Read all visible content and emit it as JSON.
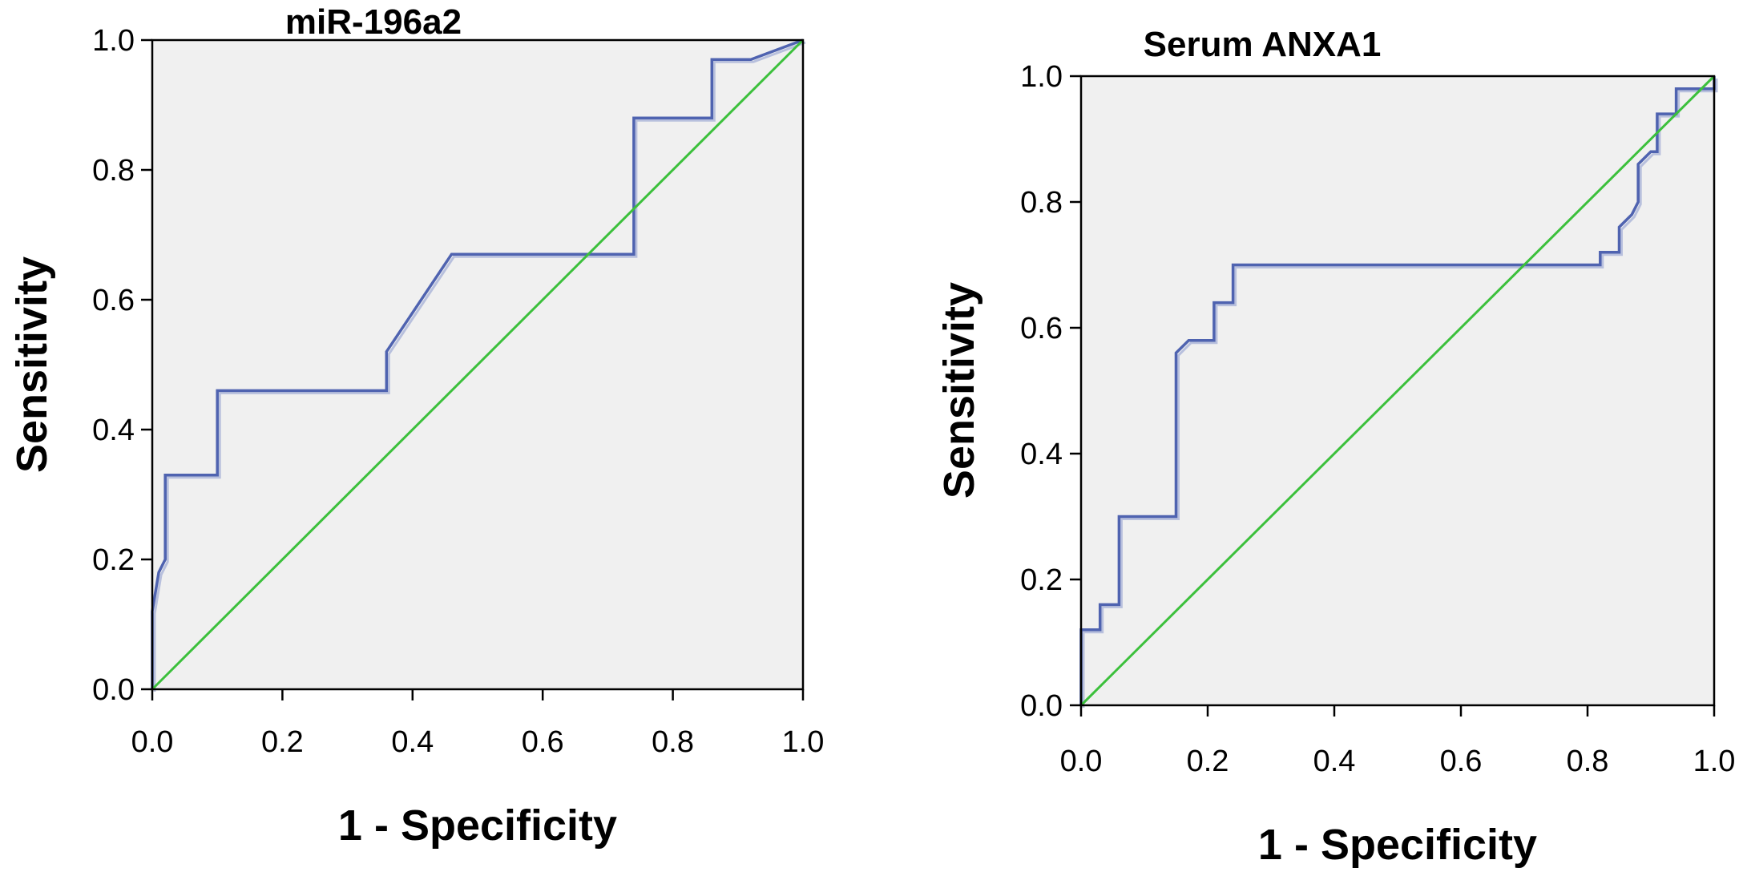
{
  "colors": {
    "plot_background": "#f0f0f0",
    "roc_curve": "#4f63b0",
    "roc_curve_shadow": "#b8c0dd",
    "reference_line": "#3cc03c",
    "axis": "#000000"
  },
  "chart_data": [
    {
      "type": "line",
      "title": "miR-196a2",
      "xlabel": "1 - Specificity",
      "ylabel": "Sensitivity",
      "xlim": [
        0,
        1
      ],
      "ylim": [
        0,
        1
      ],
      "xticks": [
        "0.0",
        "0.2",
        "0.4",
        "0.6",
        "0.8",
        "1.0"
      ],
      "yticks": [
        "0.0",
        "0.2",
        "0.4",
        "0.6",
        "0.8",
        "1.0"
      ],
      "grid": false,
      "series": [
        {
          "role": "roc-curve",
          "x": [
            0,
            0,
            0.01,
            0.02,
            0.02,
            0.1,
            0.1,
            0.36,
            0.36,
            0.46,
            0.74,
            0.74,
            0.86,
            0.86,
            0.92,
            1.0
          ],
          "y": [
            0,
            0.12,
            0.18,
            0.2,
            0.33,
            0.33,
            0.46,
            0.46,
            0.52,
            0.67,
            0.67,
            0.88,
            0.88,
            0.97,
            0.97,
            1.0
          ]
        },
        {
          "role": "reference-line",
          "x": [
            0,
            1
          ],
          "y": [
            0,
            1
          ]
        }
      ]
    },
    {
      "type": "line",
      "title": "Serum ANXA1",
      "xlabel": "1 - Specificity",
      "ylabel": "Sensitivity",
      "xlim": [
        0,
        1
      ],
      "ylim": [
        0,
        1
      ],
      "xticks": [
        "0.0",
        "0.2",
        "0.4",
        "0.6",
        "0.8",
        "1.0"
      ],
      "yticks": [
        "0.0",
        "0.2",
        "0.4",
        "0.6",
        "0.8",
        "1.0"
      ],
      "grid": false,
      "series": [
        {
          "role": "roc-curve",
          "x": [
            0,
            0,
            0.03,
            0.03,
            0.06,
            0.06,
            0.15,
            0.15,
            0.17,
            0.21,
            0.21,
            0.24,
            0.24,
            0.82,
            0.82,
            0.85,
            0.85,
            0.87,
            0.88,
            0.88,
            0.9,
            0.91,
            0.91,
            0.94,
            0.94,
            1.0,
            1.0
          ],
          "y": [
            0,
            0.12,
            0.12,
            0.16,
            0.16,
            0.3,
            0.3,
            0.56,
            0.58,
            0.58,
            0.64,
            0.64,
            0.7,
            0.7,
            0.72,
            0.72,
            0.76,
            0.78,
            0.8,
            0.86,
            0.88,
            0.88,
            0.94,
            0.94,
            0.98,
            0.98,
            1.0
          ]
        },
        {
          "role": "reference-line",
          "x": [
            0,
            1
          ],
          "y": [
            0,
            1
          ]
        }
      ]
    }
  ]
}
